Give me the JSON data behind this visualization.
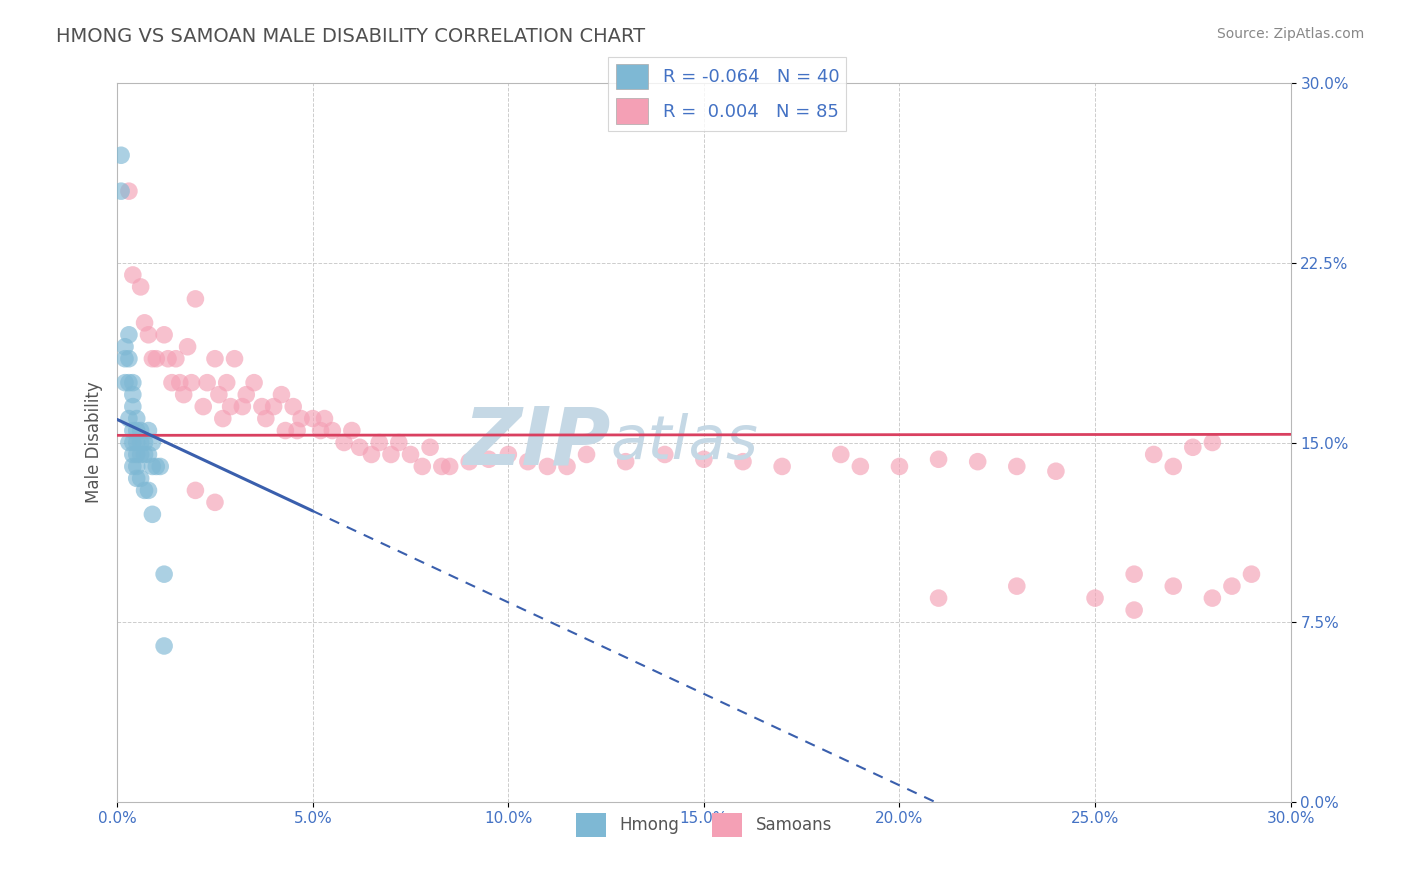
{
  "title": "HMONG VS SAMOAN MALE DISABILITY CORRELATION CHART",
  "source": "Source: ZipAtlas.com",
  "ylabel": "Male Disability",
  "xlim": [
    0.0,
    0.3
  ],
  "ylim": [
    0.0,
    0.3
  ],
  "hmong_R": -0.064,
  "hmong_N": 40,
  "samoan_R": 0.004,
  "samoan_N": 85,
  "hmong_color": "#7eb8d4",
  "samoan_color": "#f4a0b5",
  "hmong_line_color": "#3a5fad",
  "samoan_line_color": "#d94060",
  "background_color": "#ffffff",
  "grid_color": "#c8c8c8",
  "title_color": "#505050",
  "axis_label_color": "#555555",
  "tick_color": "#4472c4",
  "source_color": "#888888",
  "watermark_color": "#ccdde8",
  "hmong_x": [
    0.001,
    0.001,
    0.002,
    0.002,
    0.002,
    0.003,
    0.003,
    0.003,
    0.003,
    0.003,
    0.004,
    0.004,
    0.004,
    0.004,
    0.004,
    0.004,
    0.004,
    0.005,
    0.005,
    0.005,
    0.005,
    0.005,
    0.005,
    0.006,
    0.006,
    0.006,
    0.006,
    0.007,
    0.007,
    0.007,
    0.008,
    0.008,
    0.008,
    0.009,
    0.009,
    0.009,
    0.01,
    0.011,
    0.012,
    0.012
  ],
  "hmong_y": [
    0.27,
    0.255,
    0.19,
    0.185,
    0.175,
    0.195,
    0.185,
    0.175,
    0.16,
    0.15,
    0.175,
    0.17,
    0.165,
    0.155,
    0.15,
    0.145,
    0.14,
    0.16,
    0.155,
    0.15,
    0.145,
    0.14,
    0.135,
    0.155,
    0.15,
    0.145,
    0.135,
    0.15,
    0.145,
    0.13,
    0.155,
    0.145,
    0.13,
    0.15,
    0.14,
    0.12,
    0.14,
    0.14,
    0.065,
    0.095
  ],
  "samoan_x": [
    0.003,
    0.004,
    0.006,
    0.007,
    0.008,
    0.009,
    0.01,
    0.012,
    0.013,
    0.014,
    0.015,
    0.016,
    0.017,
    0.018,
    0.019,
    0.02,
    0.022,
    0.023,
    0.025,
    0.026,
    0.027,
    0.028,
    0.029,
    0.03,
    0.032,
    0.033,
    0.035,
    0.037,
    0.038,
    0.04,
    0.042,
    0.043,
    0.045,
    0.046,
    0.047,
    0.05,
    0.052,
    0.053,
    0.055,
    0.058,
    0.06,
    0.062,
    0.065,
    0.067,
    0.07,
    0.072,
    0.075,
    0.078,
    0.08,
    0.083,
    0.085,
    0.09,
    0.095,
    0.1,
    0.105,
    0.11,
    0.115,
    0.12,
    0.13,
    0.14,
    0.15,
    0.16,
    0.17,
    0.185,
    0.19,
    0.2,
    0.21,
    0.22,
    0.23,
    0.24,
    0.25,
    0.26,
    0.27,
    0.28,
    0.285,
    0.29,
    0.02,
    0.025,
    0.21,
    0.23,
    0.26,
    0.265,
    0.27,
    0.275,
    0.28
  ],
  "samoan_y": [
    0.255,
    0.22,
    0.215,
    0.2,
    0.195,
    0.185,
    0.185,
    0.195,
    0.185,
    0.175,
    0.185,
    0.175,
    0.17,
    0.19,
    0.175,
    0.21,
    0.165,
    0.175,
    0.185,
    0.17,
    0.16,
    0.175,
    0.165,
    0.185,
    0.165,
    0.17,
    0.175,
    0.165,
    0.16,
    0.165,
    0.17,
    0.155,
    0.165,
    0.155,
    0.16,
    0.16,
    0.155,
    0.16,
    0.155,
    0.15,
    0.155,
    0.148,
    0.145,
    0.15,
    0.145,
    0.15,
    0.145,
    0.14,
    0.148,
    0.14,
    0.14,
    0.142,
    0.143,
    0.145,
    0.142,
    0.14,
    0.14,
    0.145,
    0.142,
    0.145,
    0.143,
    0.142,
    0.14,
    0.145,
    0.14,
    0.14,
    0.143,
    0.142,
    0.14,
    0.138,
    0.085,
    0.08,
    0.09,
    0.085,
    0.09,
    0.095,
    0.13,
    0.125,
    0.085,
    0.09,
    0.095,
    0.145,
    0.14,
    0.148,
    0.15
  ],
  "hmong_line_x_solid_start": 0.0,
  "hmong_line_x_solid_end": 0.05,
  "hmong_line_x_dash_start": 0.05,
  "hmong_line_x_dash_end": 0.3,
  "samoan_line_x_start": 0.0,
  "samoan_line_x_end": 0.3
}
